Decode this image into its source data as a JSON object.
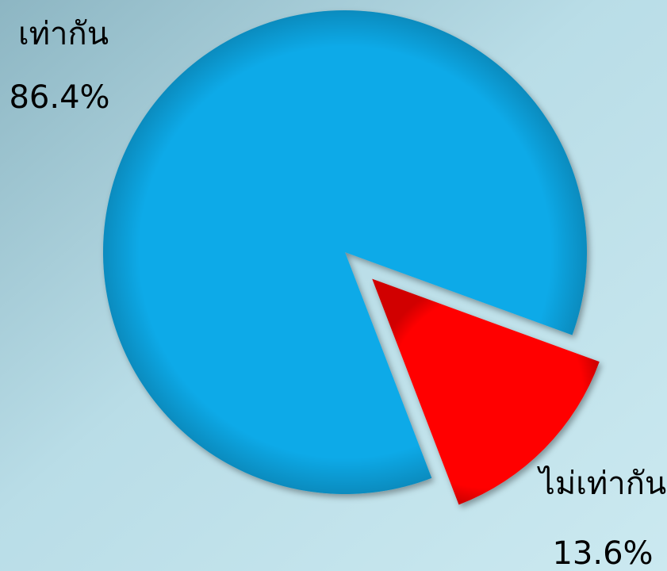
{
  "chart_data": {
    "type": "pie",
    "categories": [
      "เท่ากัน",
      "ไม่เท่ากัน"
    ],
    "values": [
      86.4,
      13.6
    ],
    "value_labels": [
      "86.4%",
      "13.6%"
    ],
    "colors": [
      "#0aaae8",
      "#ff0000"
    ]
  }
}
